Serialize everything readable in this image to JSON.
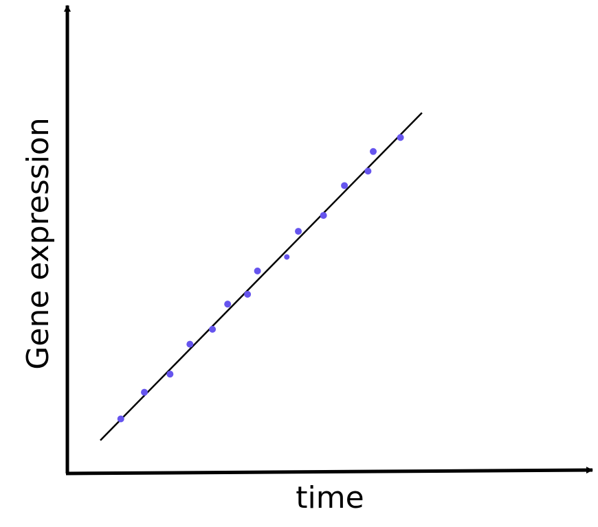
{
  "chart_data": {
    "type": "scatter",
    "title": "",
    "xlabel": "time",
    "ylabel": "Gene expression",
    "xlim": [
      0,
      100
    ],
    "ylim": [
      0,
      100
    ],
    "grid": false,
    "legend": "none",
    "point_color": "#6655ee",
    "line_color": "#000000",
    "axis_color": "#000000",
    "series": [
      {
        "x": [
          10.2,
          14.7,
          19.6,
          23.4,
          27.7,
          30.6,
          34.4,
          36.3,
          41.9,
          44.1,
          48.9,
          52.9,
          57.4,
          58.4,
          63.6
        ],
        "y": [
          11.7,
          17.4,
          21.3,
          27.7,
          30.9,
          36.3,
          38.4,
          43.4,
          46.4,
          51.9,
          55.3,
          61.7,
          64.8,
          69.0,
          72.0
        ],
        "sizes": [
          1,
          1,
          1,
          1,
          1,
          1,
          1,
          1,
          0.8,
          1,
          1,
          1,
          1,
          1,
          1
        ]
      }
    ],
    "trendline": {
      "x": [
        6.3,
        67.7
      ],
      "y": [
        7.1,
        77.3
      ]
    }
  }
}
